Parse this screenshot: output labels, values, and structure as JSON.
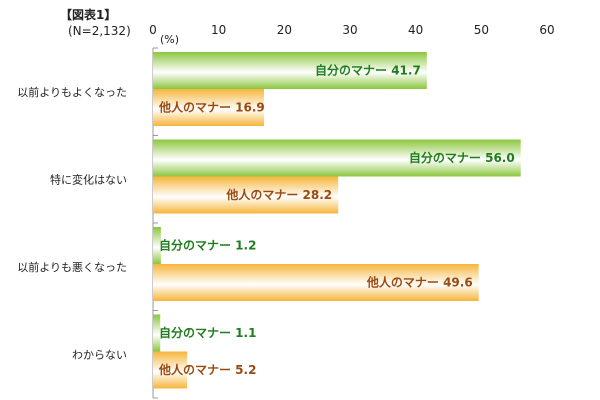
{
  "header": {
    "title": "【図表1】",
    "sample": "(N=2,132)",
    "unit": "(%)"
  },
  "colors": {
    "self_bar": "#8cc63f",
    "self_bar_light": "#ffffff",
    "self_text": "#1e7d1e",
    "other_bar": "#f6b53a",
    "other_bar_light": "#ffffff",
    "other_text": "#9a4a10",
    "axis": "#999999"
  },
  "chart_data": {
    "type": "bar",
    "orientation": "horizontal",
    "xlim": [
      0,
      60
    ],
    "x_ticks": [
      "0",
      "10",
      "20",
      "30",
      "40",
      "50",
      "60"
    ],
    "categories": [
      "以前よりもよくなった",
      "特に変化はない",
      "以前よりも悪くなった",
      "わからない"
    ],
    "series": [
      {
        "name": "自分のマナー",
        "values": [
          41.7,
          56.0,
          1.2,
          1.1
        ],
        "value_labels": [
          "41.7",
          "56.0",
          "1.2",
          "1.1"
        ]
      },
      {
        "name": "他人のマナー",
        "values": [
          16.9,
          28.2,
          49.6,
          5.2
        ],
        "value_labels": [
          "16.9",
          "28.2",
          "49.6",
          "5.2"
        ]
      }
    ],
    "grid": false,
    "legend": "none"
  }
}
